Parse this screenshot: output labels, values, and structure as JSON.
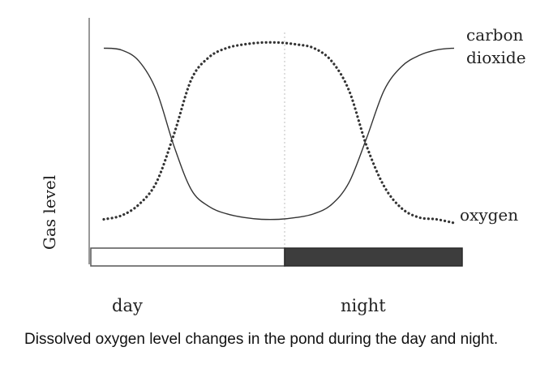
{
  "chart_data": {
    "type": "line",
    "ylabel": "Gas level",
    "x_periods": [
      "day",
      "night"
    ],
    "series": [
      {
        "name": "carbon dioxide",
        "style": "solid",
        "x": [
          0,
          0.05,
          0.1,
          0.15,
          0.2,
          0.25,
          0.3,
          0.35,
          0.4,
          0.45,
          0.5,
          0.55,
          0.6,
          0.65,
          0.7,
          0.75,
          0.8,
          0.85,
          0.9,
          0.95,
          1
        ],
        "y": [
          0.95,
          0.94,
          0.88,
          0.72,
          0.42,
          0.18,
          0.09,
          0.05,
          0.03,
          0.02,
          0.02,
          0.03,
          0.05,
          0.1,
          0.22,
          0.46,
          0.72,
          0.85,
          0.91,
          0.94,
          0.95
        ]
      },
      {
        "name": "oxygen",
        "style": "dotted",
        "x": [
          0,
          0.05,
          0.1,
          0.15,
          0.2,
          0.25,
          0.3,
          0.35,
          0.4,
          0.45,
          0.5,
          0.55,
          0.6,
          0.65,
          0.7,
          0.75,
          0.8,
          0.85,
          0.9,
          0.95,
          1
        ],
        "y": [
          0.02,
          0.04,
          0.1,
          0.22,
          0.48,
          0.78,
          0.9,
          0.95,
          0.97,
          0.98,
          0.98,
          0.97,
          0.95,
          0.88,
          0.72,
          0.42,
          0.2,
          0.08,
          0.03,
          0.02,
          0.0
        ]
      }
    ],
    "series_labels": [
      "carbon\ndioxide",
      "oxygen"
    ],
    "period_bar": [
      {
        "label": "day",
        "fill": "#ffffff"
      },
      {
        "label": "night",
        "fill": "#3d3d3d"
      }
    ],
    "divider_style": "dotted",
    "grid": false
  },
  "caption": "Dissolved oxygen level changes in the pond during the day and night.",
  "colors": {
    "line": "#333333",
    "axis": "#555555",
    "divider": "#c8c8c8"
  }
}
